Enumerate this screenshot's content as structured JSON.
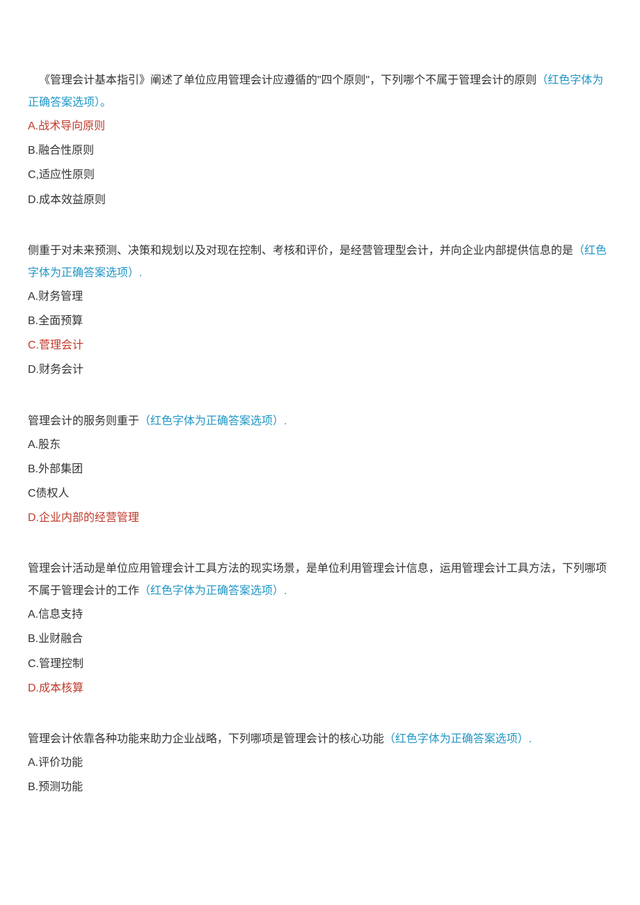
{
  "hint_text": "（红色字体为正确答案选项）",
  "period_cn": "。",
  "period_en": ".",
  "questions": [
    {
      "text": "《管理会计基本指引》阐述了单位应用管理会计应遵循的\"四个原则\"，下列哪个不属于管理会计的原则",
      "indent": true,
      "options": [
        {
          "label": "A.战术导向原则",
          "correct": true
        },
        {
          "label": "B.融合性原则",
          "correct": false
        },
        {
          "label": "C,适应性原则",
          "correct": false
        },
        {
          "label": "D.成本效益原则",
          "correct": false
        }
      ]
    },
    {
      "text": "侧重于对未来预测、决策和规划以及对现在控制、考核和评价，是经营管理型会计，并向企业内部提供信息的是",
      "indent": false,
      "options": [
        {
          "label": "A.财务管理",
          "correct": false
        },
        {
          "label": "B.全面预算",
          "correct": false
        },
        {
          "label": "C.菅理会计",
          "correct": true
        },
        {
          "label": "D.财务会计",
          "correct": false
        }
      ]
    },
    {
      "text": "管理会计的服务则重于",
      "indent": false,
      "options": [
        {
          "label": "A.股东",
          "correct": false
        },
        {
          "label": "B.外部集团",
          "correct": false
        },
        {
          "label": "C债权人",
          "correct": false
        },
        {
          "label": "D.企业内部的经营管理",
          "correct": true
        }
      ]
    },
    {
      "text": "管理会计活动是单位应用管理会计工具方法的现实场景，是单位利用管理会计信息，运用管理会计工具方法，下列哪项不属于管理会计的工作",
      "indent": false,
      "options": [
        {
          "label": "A.信息支持",
          "correct": false
        },
        {
          "label": "B.业财融合",
          "correct": false
        },
        {
          "label": "C.管理控制",
          "correct": false
        },
        {
          "label": "D.成本核算",
          "correct": true
        }
      ]
    },
    {
      "text": "管理会计依靠各种功能来助力企业战略，下列哪项是管理会计的核心功能",
      "indent": false,
      "options": [
        {
          "label": "A.评价功能",
          "correct": false
        },
        {
          "label": "B.预测功能",
          "correct": false
        }
      ]
    }
  ]
}
